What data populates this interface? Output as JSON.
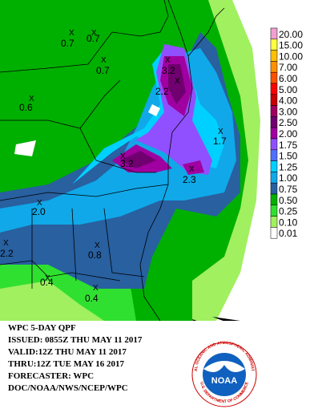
{
  "map": {
    "points": [
      "0.7",
      "0.7",
      "0.7",
      "0.6",
      "3.2",
      "2.2",
      "1.7",
      "3.2",
      "2.3",
      "2.0",
      "2.2",
      "0.8",
      "0.4",
      "0.4"
    ],
    "marker": "X",
    "legend": [
      {
        "label": "20.00",
        "color": "#f0a0d0"
      },
      {
        "label": "15.00",
        "color": "#ffff40"
      },
      {
        "label": "10.00",
        "color": "#ffc000"
      },
      {
        "label": "7.00",
        "color": "#ff9000"
      },
      {
        "label": "6.00",
        "color": "#ff5000"
      },
      {
        "label": "5.00",
        "color": "#ff0000"
      },
      {
        "label": "4.00",
        "color": "#c80000"
      },
      {
        "label": "3.00",
        "color": "#a00060"
      },
      {
        "label": "2.50",
        "color": "#700070"
      },
      {
        "label": "2.00",
        "color": "#a000a0"
      },
      {
        "label": "1.75",
        "color": "#9050ff"
      },
      {
        "label": "1.50",
        "color": "#5070ff"
      },
      {
        "label": "1.25",
        "color": "#00d0ff"
      },
      {
        "label": "1.00",
        "color": "#10a8e8"
      },
      {
        "label": "0.75",
        "color": "#2860a0"
      },
      {
        "label": "0.50",
        "color": "#00b000"
      },
      {
        "label": "0.25",
        "color": "#30e030"
      },
      {
        "label": "0.10",
        "color": "#a0f060"
      },
      {
        "label": "0.01",
        "color": "#ffffff"
      }
    ],
    "info": [
      "WPC 5-DAY QPF",
      "ISSUED: 0855Z THU MAY 11 2017",
      "VALID:12Z THU MAY 11 2017",
      "THRU:12Z TUE MAY 16 2017",
      "FORECASTER: WPC",
      "DOC/NOAA/NWS/NCEP/WPC"
    ],
    "logo": {
      "name": "NOAA",
      "top": "NATIONAL OCEANIC AND ATMOSPHERIC ADMINISTRATION",
      "bottom": "U.S. DEPARTMENT OF COMMERCE"
    }
  }
}
